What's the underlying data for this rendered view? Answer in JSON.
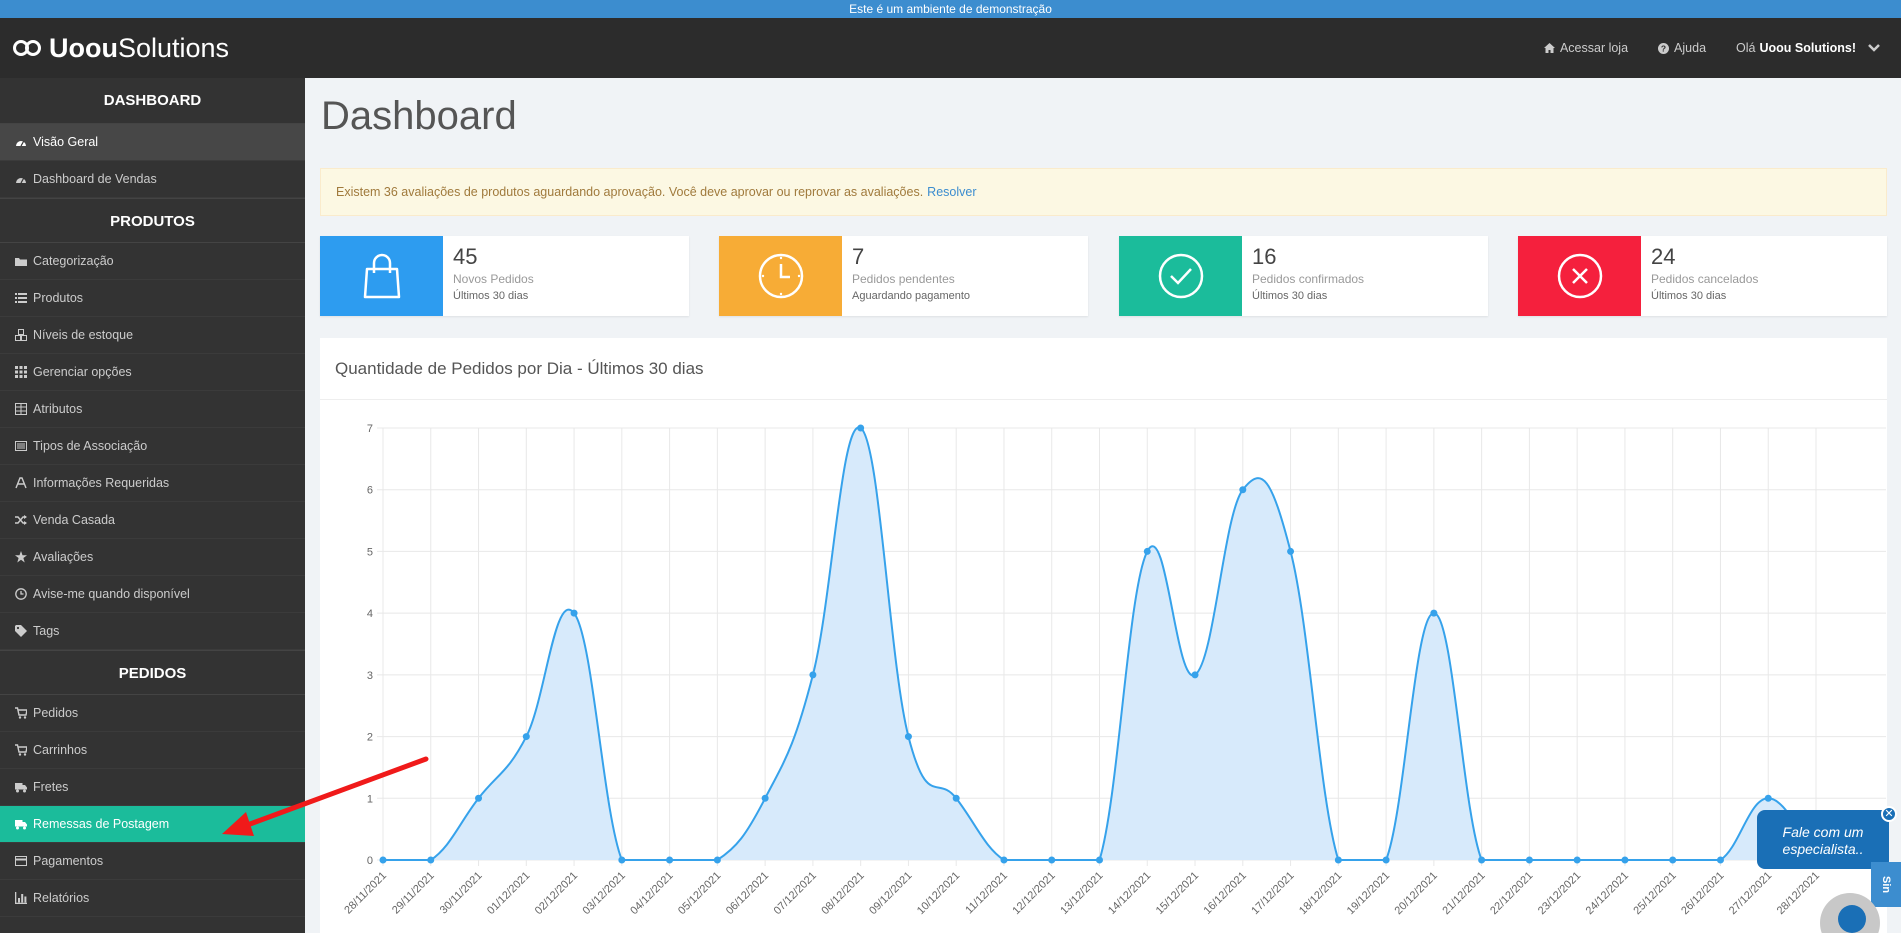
{
  "demo_banner": "Este é um ambiente de demonstração",
  "brand": {
    "part1": "Uoou",
    "part2": "Solutions"
  },
  "topnav": {
    "store": "Acessar loja",
    "help": "Ajuda",
    "greeting": "Olá",
    "user": "Uoou Solutions!"
  },
  "sidebar": {
    "sections": [
      {
        "title": "DASHBOARD",
        "items": [
          {
            "label": "Visão Geral",
            "icon": "dashboard-icon",
            "state": "selected"
          },
          {
            "label": "Dashboard de Vendas",
            "icon": "dashboard-icon",
            "state": ""
          }
        ]
      },
      {
        "title": "PRODUTOS",
        "items": [
          {
            "label": "Categorização",
            "icon": "folder-icon",
            "state": ""
          },
          {
            "label": "Produtos",
            "icon": "list-icon",
            "state": ""
          },
          {
            "label": "Níveis de estoque",
            "icon": "cubes-icon",
            "state": ""
          },
          {
            "label": "Gerenciar opções",
            "icon": "grid-icon",
            "state": ""
          },
          {
            "label": "Atributos",
            "icon": "table-icon",
            "state": ""
          },
          {
            "label": "Tipos de Associação",
            "icon": "list-alt-icon",
            "state": ""
          },
          {
            "label": "Informações Requeridas",
            "icon": "font-icon",
            "state": ""
          },
          {
            "label": "Venda Casada",
            "icon": "random-icon",
            "state": ""
          },
          {
            "label": "Avaliações",
            "icon": "star-icon",
            "state": ""
          },
          {
            "label": "Avise-me quando disponível",
            "icon": "clock-icon",
            "state": ""
          },
          {
            "label": "Tags",
            "icon": "tag-icon",
            "state": ""
          }
        ]
      },
      {
        "title": "PEDIDOS",
        "items": [
          {
            "label": "Pedidos",
            "icon": "cart-icon",
            "state": ""
          },
          {
            "label": "Carrinhos",
            "icon": "cart-icon",
            "state": ""
          },
          {
            "label": "Fretes",
            "icon": "truck-icon",
            "state": ""
          },
          {
            "label": "Remessas de Postagem",
            "icon": "truck-icon",
            "state": "active"
          },
          {
            "label": "Pagamentos",
            "icon": "credit-card-icon",
            "state": ""
          },
          {
            "label": "Relatórios",
            "icon": "bar-chart-icon",
            "state": ""
          }
        ]
      }
    ]
  },
  "page": {
    "title": "Dashboard"
  },
  "alert": {
    "text": "Existem 36 avaliações de produtos aguardando aprovação. Você deve aprovar ou reprovar as avaliações.",
    "link": "Resolver"
  },
  "stats": [
    {
      "value": "45",
      "label": "Novos Pedidos",
      "sub": "Últimos 30 dias",
      "color": "#2d9cf0",
      "icon": "shopping-bag-icon"
    },
    {
      "value": "7",
      "label": "Pedidos pendentes",
      "sub": "Aguardando pagamento",
      "color": "#f7ac36",
      "icon": "clock-icon"
    },
    {
      "value": "16",
      "label": "Pedidos confirmados",
      "sub": "Últimos 30 dias",
      "color": "#1bbc9b",
      "icon": "check-circle-icon"
    },
    {
      "value": "24",
      "label": "Pedidos cancelados",
      "sub": "Últimos 30 dias",
      "color": "#f5203d",
      "icon": "x-circle-icon"
    }
  ],
  "chart_panel": {
    "title": "Quantidade de Pedidos por Dia - Últimos 30 dias"
  },
  "chart_data": {
    "type": "area",
    "x": [
      "28/11/2021",
      "29/11/2021",
      "30/11/2021",
      "01/12/2021",
      "02/12/2021",
      "03/12/2021",
      "04/12/2021",
      "05/12/2021",
      "06/12/2021",
      "07/12/2021",
      "08/12/2021",
      "09/12/2021",
      "10/12/2021",
      "11/12/2021",
      "12/12/2021",
      "13/12/2021",
      "14/12/2021",
      "15/12/2021",
      "16/12/2021",
      "17/12/2021",
      "18/12/2021",
      "19/12/2021",
      "20/12/2021",
      "21/12/2021",
      "22/12/2021",
      "23/12/2021",
      "24/12/2021",
      "25/12/2021",
      "26/12/2021",
      "27/12/2021",
      "28/12/2021"
    ],
    "values": [
      0,
      0,
      1,
      2,
      4,
      0,
      0,
      0,
      1,
      3,
      7,
      2,
      1,
      0,
      0,
      0,
      5,
      3,
      6,
      5,
      0,
      0,
      4,
      0,
      0,
      0,
      0,
      0,
      0,
      1,
      0
    ],
    "ylim": [
      0,
      7
    ],
    "yticks": [
      0,
      1,
      2,
      3,
      4,
      5,
      6,
      7
    ],
    "grid": true,
    "line_color": "#36a2eb",
    "fill_color": "#d7eafb"
  },
  "widget": {
    "line1": "Fale com um",
    "line2": "especialista..",
    "close": "✕",
    "tab": "Sin"
  }
}
